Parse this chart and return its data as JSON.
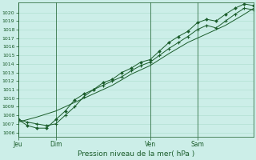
{
  "xlabel": "Pression niveau de la mer( hPa )",
  "bg_color": "#cceee8",
  "grid_color": "#aaddcc",
  "line_color": "#1a5c2a",
  "ylim": [
    1006,
    1021
  ],
  "yticks": [
    1006,
    1007,
    1008,
    1009,
    1010,
    1011,
    1012,
    1013,
    1014,
    1015,
    1016,
    1017,
    1018,
    1019,
    1020
  ],
  "day_labels": [
    "Jeu",
    "Dim",
    "Ven",
    "Sam"
  ],
  "day_positions": [
    0,
    16,
    56,
    76
  ],
  "xlim": [
    0,
    100
  ],
  "series1_x": [
    0,
    4,
    8,
    12,
    16,
    20,
    24,
    28,
    32,
    36,
    40,
    44,
    48,
    52,
    56,
    60,
    64,
    68,
    72,
    76,
    80,
    84,
    88,
    92,
    96,
    100
  ],
  "series1_y": [
    1007.5,
    1007.2,
    1007.0,
    1006.8,
    1007.0,
    1008.0,
    1009.0,
    1010.2,
    1011.0,
    1011.5,
    1012.0,
    1012.5,
    1013.2,
    1013.8,
    1014.2,
    1015.0,
    1015.8,
    1016.5,
    1017.2,
    1018.0,
    1018.5,
    1018.2,
    1019.0,
    1019.8,
    1020.5,
    1020.3
  ],
  "series2_x": [
    0,
    4,
    8,
    12,
    16,
    20,
    24,
    28,
    32,
    36,
    40,
    44,
    48,
    52,
    56,
    60,
    64,
    68,
    72,
    76,
    80,
    84,
    88,
    92,
    96,
    100
  ],
  "series2_y": [
    1007.5,
    1006.8,
    1006.5,
    1006.5,
    1007.5,
    1008.5,
    1009.8,
    1010.5,
    1011.0,
    1011.8,
    1012.2,
    1013.0,
    1013.5,
    1014.2,
    1014.5,
    1015.5,
    1016.5,
    1017.2,
    1017.8,
    1018.8,
    1019.2,
    1019.0,
    1019.8,
    1020.5,
    1021.0,
    1020.8
  ],
  "series3_x": [
    0,
    8,
    16,
    24,
    32,
    40,
    48,
    56,
    64,
    72,
    80,
    88,
    96,
    100
  ],
  "series3_y": [
    1007.2,
    1007.8,
    1008.5,
    1009.5,
    1010.5,
    1011.5,
    1012.8,
    1013.8,
    1015.2,
    1016.5,
    1017.5,
    1018.5,
    1019.8,
    1020.5
  ],
  "marker1_x": [
    0,
    4,
    8,
    12,
    16,
    20,
    24,
    28,
    32,
    36,
    40,
    44,
    48,
    52,
    56,
    60,
    64,
    68,
    72,
    76,
    80,
    84,
    88,
    92,
    96,
    100
  ],
  "marker1_y": [
    1007.5,
    1007.2,
    1007.0,
    1006.8,
    1007.0,
    1008.0,
    1009.0,
    1010.2,
    1011.0,
    1011.5,
    1012.0,
    1012.5,
    1013.2,
    1013.8,
    1014.2,
    1015.0,
    1015.8,
    1016.5,
    1017.2,
    1018.0,
    1018.5,
    1018.2,
    1019.0,
    1019.8,
    1020.5,
    1020.3
  ]
}
